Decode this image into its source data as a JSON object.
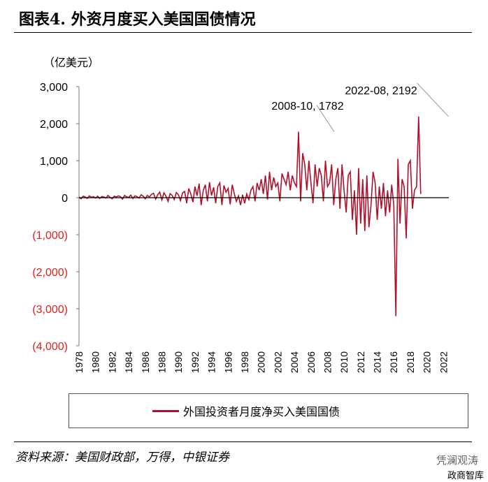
{
  "header": {
    "title": "图表4. 外资月度买入美国国债情况"
  },
  "chart_data": {
    "type": "line",
    "title": "图表4. 外资月度买入美国国债情况",
    "ylabel": "（亿美元）",
    "ylim": [
      -4000,
      3000
    ],
    "yticks": [
      3000,
      2000,
      1000,
      0,
      -1000,
      -2000,
      -3000,
      -4000
    ],
    "ytick_labels": [
      "3,000",
      "2,000",
      "1,000",
      "0",
      "(1,000)",
      "(2,000)",
      "(3,000)",
      "(4,000)"
    ],
    "negative_tick_color": "#e0201c",
    "xlim": [
      1978,
      2022.9
    ],
    "xtick_labels": [
      "1978",
      "1980",
      "1982",
      "1984",
      "1986",
      "1988",
      "1990",
      "1992",
      "1994",
      "1996",
      "1998",
      "2000",
      "2002",
      "2004",
      "2006",
      "2008",
      "2010",
      "2012",
      "2014",
      "2016",
      "2018",
      "2020",
      "2022"
    ],
    "series": [
      {
        "name": "外国投资者月度净买入美国国债",
        "color": "#b0102a",
        "start": 1978,
        "step": 0.25,
        "values": [
          10,
          -30,
          40,
          20,
          -20,
          50,
          10,
          30,
          -10,
          40,
          -20,
          30,
          20,
          -10,
          60,
          10,
          -30,
          40,
          20,
          50,
          30,
          -40,
          60,
          20,
          10,
          70,
          -20,
          50,
          30,
          -10,
          80,
          40,
          -30,
          60,
          20,
          90,
          120,
          -40,
          80,
          150,
          -60,
          130,
          40,
          -100,
          110,
          60,
          -50,
          140,
          80,
          -80,
          130,
          170,
          -150,
          250,
          100,
          -120,
          300,
          50,
          380,
          -200,
          200,
          350,
          -100,
          420,
          60,
          280,
          -150,
          300,
          400,
          -200,
          330,
          150,
          250,
          -180,
          350,
          100,
          -100,
          50,
          -200,
          80,
          -150,
          100,
          -50,
          200,
          300,
          -100,
          400,
          200,
          500,
          100,
          600,
          -50,
          700,
          200,
          550,
          300,
          400,
          -100,
          650,
          500,
          350,
          700,
          200,
          600,
          400,
          300,
          1782,
          -100,
          1200,
          900,
          200,
          1000,
          400,
          -150,
          900,
          300,
          800,
          600,
          -100,
          1000,
          300,
          400,
          900,
          -200,
          500,
          800,
          -300,
          900,
          200,
          -400,
          600,
          700,
          -600,
          200,
          -1000,
          800,
          -700,
          500,
          -900,
          600,
          -800,
          -200,
          700,
          400,
          -600,
          300,
          -300,
          400,
          -500,
          200,
          -400,
          350,
          -200,
          -3200,
          1050,
          -700,
          500,
          300,
          -1100,
          900,
          1000,
          -300,
          200,
          300,
          2192,
          100
        ]
      }
    ],
    "annotations": [
      {
        "label": "2008-10, 1782",
        "x": 2008.8,
        "y": 1782
      },
      {
        "label": "2022-08, 2192",
        "x": 2022.6,
        "y": 2192
      }
    ],
    "legend": {
      "position": "bottom",
      "label": "外国投资者月度净买入美国国债"
    }
  },
  "footer": {
    "source": "资料来源：美国财政部，万得，中银证券",
    "watermark": "凭澜观涛",
    "watermark2": "政商智库"
  }
}
